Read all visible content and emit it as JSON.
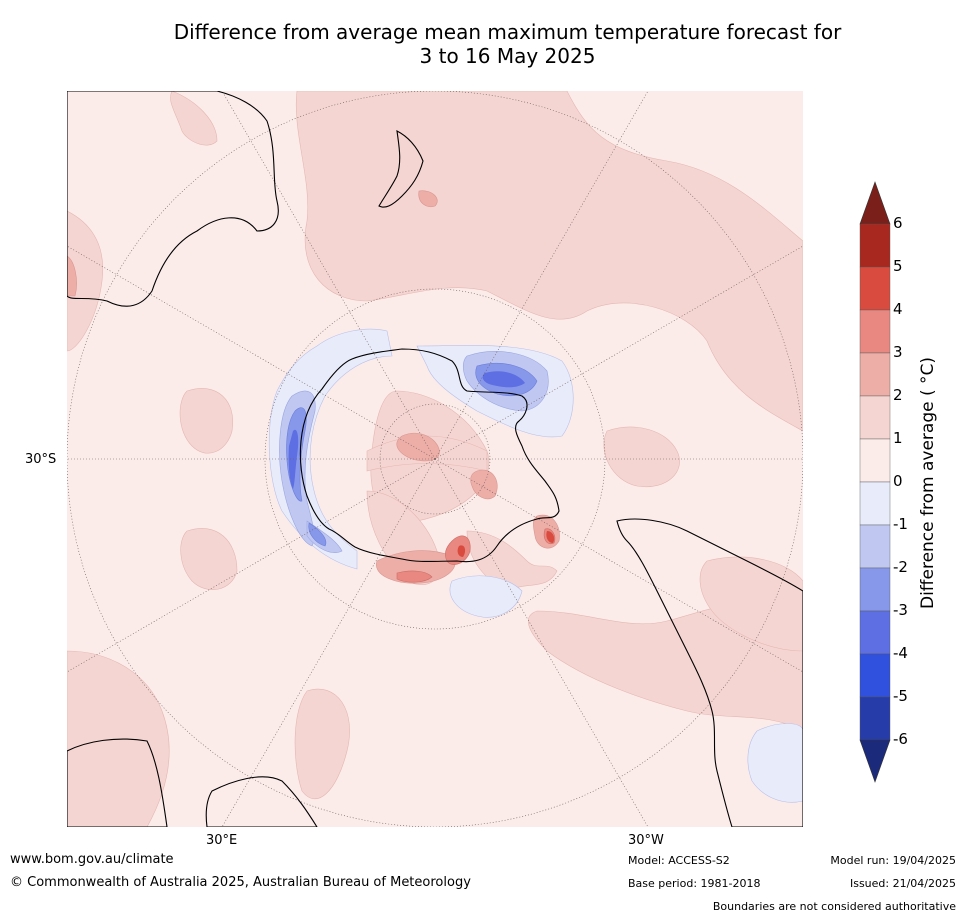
{
  "title": {
    "line1": "Difference from average mean maximum temperature forecast for",
    "line2": "3 to 16 May 2025"
  },
  "graticule_labels": {
    "lat_30s": "30°S",
    "lon_30e": "30°E",
    "lon_30w": "30°W"
  },
  "colorbar": {
    "title": "Difference from average ( °C)",
    "ticks": [
      "6",
      "5",
      "4",
      "3",
      "2",
      "1",
      "0",
      "-1",
      "-2",
      "-3",
      "-4",
      "-5",
      "-6"
    ],
    "colors": {
      "gt6": "#7a1f1a",
      "5_6": "#a8281f",
      "4_5": "#d94b3f",
      "3_4": "#e88880",
      "2_3": "#edaea7",
      "1_2": "#f5d5d2",
      "0_1": "#fbecea",
      "m1_0": "#e8ebfa",
      "m2_m1": "#c0c8f1",
      "m3_m2": "#8797ea",
      "m4_m3": "#5d6fe2",
      "m5_m4": "#3050de",
      "m6_m5": "#263ca8",
      "lt_m6": "#1c2a7c"
    }
  },
  "footer": {
    "website": "www.bom.gov.au/climate",
    "copyright": "© Commonwealth of Australia 2025, Australian Bureau of Meteorology",
    "model": "Model: ACCESS-S2",
    "base_period": "Base period: 1981-2018",
    "model_run": "Model run: 19/04/2025",
    "issued": "Issued: 21/04/2025",
    "disclaimer": "Boundaries are not considered authoritative"
  }
}
